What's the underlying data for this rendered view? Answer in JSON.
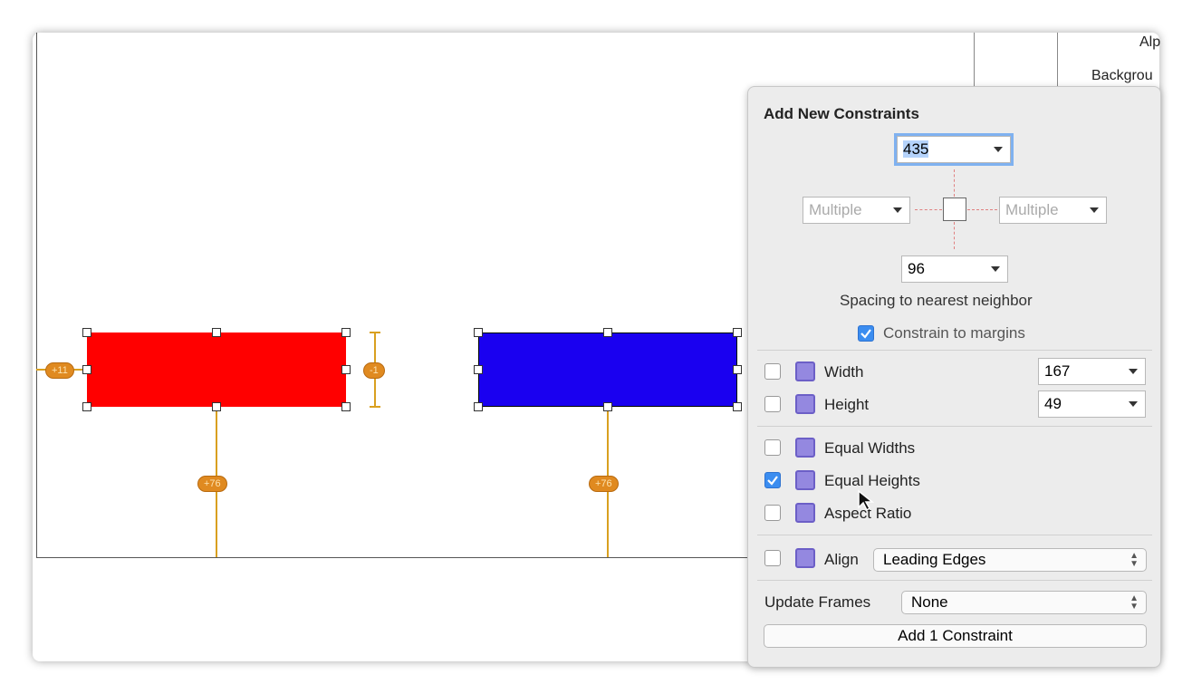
{
  "inspector": {
    "labels": [
      "Alp",
      "Backgrou"
    ]
  },
  "canvas": {
    "badges": [
      "+11",
      "-1",
      "+76",
      "+76"
    ]
  },
  "popover": {
    "title": "Add New Constraints",
    "top": "435",
    "left": "Multiple",
    "right": "Multiple",
    "bottom": "96",
    "spacing_caption": "Spacing to nearest neighbor",
    "constrain_margins": {
      "label": "Constrain to margins",
      "checked": true
    },
    "size": [
      {
        "label": "Width",
        "value": "167",
        "checked": false
      },
      {
        "label": "Height",
        "value": "49",
        "checked": false
      }
    ],
    "equal": [
      {
        "label": "Equal Widths",
        "checked": false
      },
      {
        "label": "Equal Heights",
        "checked": true
      },
      {
        "label": "Aspect Ratio",
        "checked": false
      }
    ],
    "align": {
      "label": "Align",
      "value": "Leading Edges",
      "checked": false
    },
    "update_frames": {
      "label": "Update Frames",
      "value": "None"
    },
    "button": "Add 1 Constraint"
  }
}
